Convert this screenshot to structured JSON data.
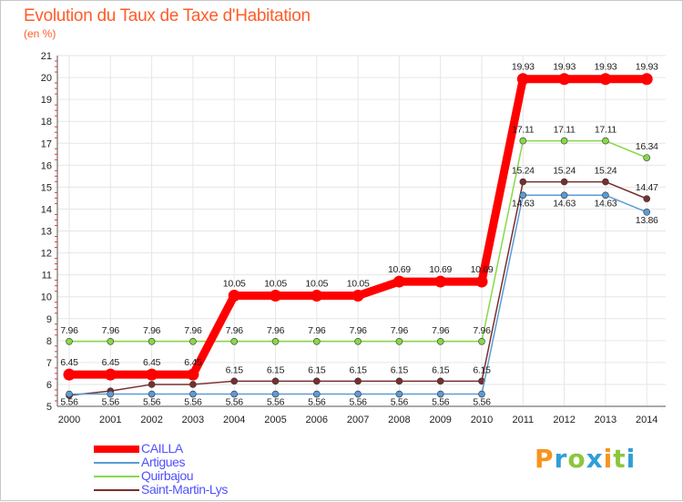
{
  "chart_data": {
    "type": "line",
    "title": "Evolution du Taux de Taxe d'Habitation",
    "subtitle": "(en %)",
    "xlabel": "",
    "ylabel": "(en %)",
    "categories": [
      "2000",
      "2001",
      "2002",
      "2003",
      "2004",
      "2005",
      "2006",
      "2007",
      "2008",
      "2009",
      "2010",
      "2011",
      "2012",
      "2013",
      "2014"
    ],
    "ylim": [
      5,
      21
    ],
    "yticks": [
      "5",
      "6",
      "7",
      "8",
      "9",
      "10",
      "11",
      "12",
      "13",
      "14",
      "15",
      "16",
      "17",
      "18",
      "19",
      "20",
      "21"
    ],
    "grid": true,
    "legend_position": "bottom-left",
    "series": [
      {
        "name": "Saint-Martin-Lys",
        "color": "#7a2e2e",
        "values": [
          5.5,
          5.7,
          6.0,
          6.0,
          6.15,
          6.15,
          6.15,
          6.15,
          6.15,
          6.15,
          6.15,
          15.24,
          15.24,
          15.24,
          14.47
        ],
        "labels": [
          "",
          "",
          "",
          "",
          "6.15",
          "6.15",
          "6.15",
          "6.15",
          "6.15",
          "6.15",
          "6.15",
          "15.24",
          "15.24",
          "15.24",
          "14.47"
        ]
      },
      {
        "name": "Quirbajou",
        "color": "#88d848",
        "values": [
          7.96,
          7.96,
          7.96,
          7.96,
          7.96,
          7.96,
          7.96,
          7.96,
          7.96,
          7.96,
          7.96,
          17.11,
          17.11,
          17.11,
          16.34
        ],
        "labels": [
          "7.96",
          "7.96",
          "7.96",
          "7.96",
          "7.96",
          "7.96",
          "7.96",
          "7.96",
          "7.96",
          "7.96",
          "7.96",
          "17.11",
          "17.11",
          "17.11",
          "16.34"
        ]
      },
      {
        "name": "Artigues",
        "color": "#5b9bd5",
        "values": [
          5.56,
          5.56,
          5.56,
          5.56,
          5.56,
          5.56,
          5.56,
          5.56,
          5.56,
          5.56,
          5.56,
          14.63,
          14.63,
          14.63,
          13.86
        ],
        "labels": [
          "5.56",
          "5.56",
          "5.56",
          "5.56",
          "5.56",
          "5.56",
          "5.56",
          "5.56",
          "5.56",
          "5.56",
          "5.56",
          "14.63",
          "14.63",
          "14.63",
          "13.86"
        ]
      },
      {
        "name": "CAILLA",
        "color": "#ff0000",
        "values": [
          6.45,
          6.45,
          6.45,
          6.45,
          10.05,
          10.05,
          10.05,
          10.05,
          10.69,
          10.69,
          10.69,
          19.93,
          19.93,
          19.93,
          19.93
        ],
        "labels": [
          "6.45",
          "6.45",
          "6.45",
          "6.45",
          "10.05",
          "10.05",
          "10.05",
          "10.05",
          "10.69",
          "10.69",
          "10.69",
          "19.93",
          "19.93",
          "19.93",
          "19.93"
        ]
      }
    ],
    "legend": [
      "CAILLA",
      "Artigues",
      "Quirbajou",
      "Saint-Martin-Lys"
    ]
  },
  "logo": {
    "text": "Proxiti",
    "letters": [
      "P",
      "r",
      "o",
      "x",
      "i",
      "t",
      "i"
    ],
    "colors": [
      "#f7941d",
      "#2e9fd8",
      "#8cc63f",
      "#2e9fd8",
      "#f7941d",
      "#8cc63f",
      "#2e9fd8"
    ]
  }
}
